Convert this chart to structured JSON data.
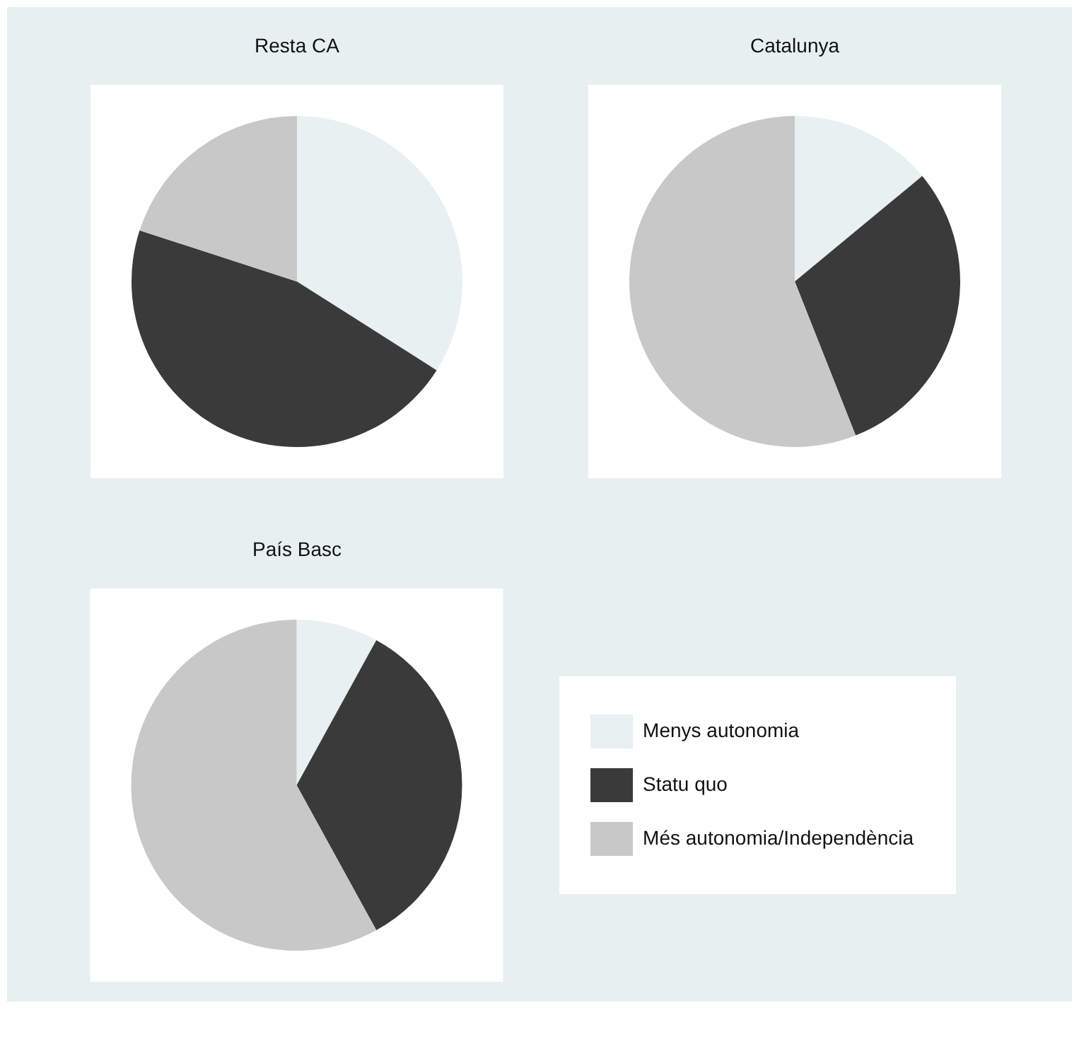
{
  "chart_data": [
    {
      "type": "pie",
      "title": "Resta CA",
      "categories": [
        null,
        null,
        null
      ],
      "values": [
        34,
        46,
        20
      ],
      "colors": [
        "#e8f0f2",
        "#3a3a3a",
        "#c8c8c8"
      ],
      "legend": false
    },
    {
      "type": "pie",
      "title": "Catalunya",
      "categories": [
        null,
        null,
        null
      ],
      "values": [
        14,
        30,
        56
      ],
      "colors": [
        "#e8f0f2",
        "#3a3a3a",
        "#c8c8c8"
      ],
      "legend": false
    },
    {
      "type": "pie",
      "title": "País Basc",
      "categories": [
        "Menys autonomia",
        "Statu quo",
        "Més autonomia/Independència"
      ],
      "values": [
        8,
        34,
        58
      ],
      "colors": [
        "#e8f0f2",
        "#3a3a3a",
        "#c8c8c8"
      ],
      "legend": "right"
    }
  ]
}
